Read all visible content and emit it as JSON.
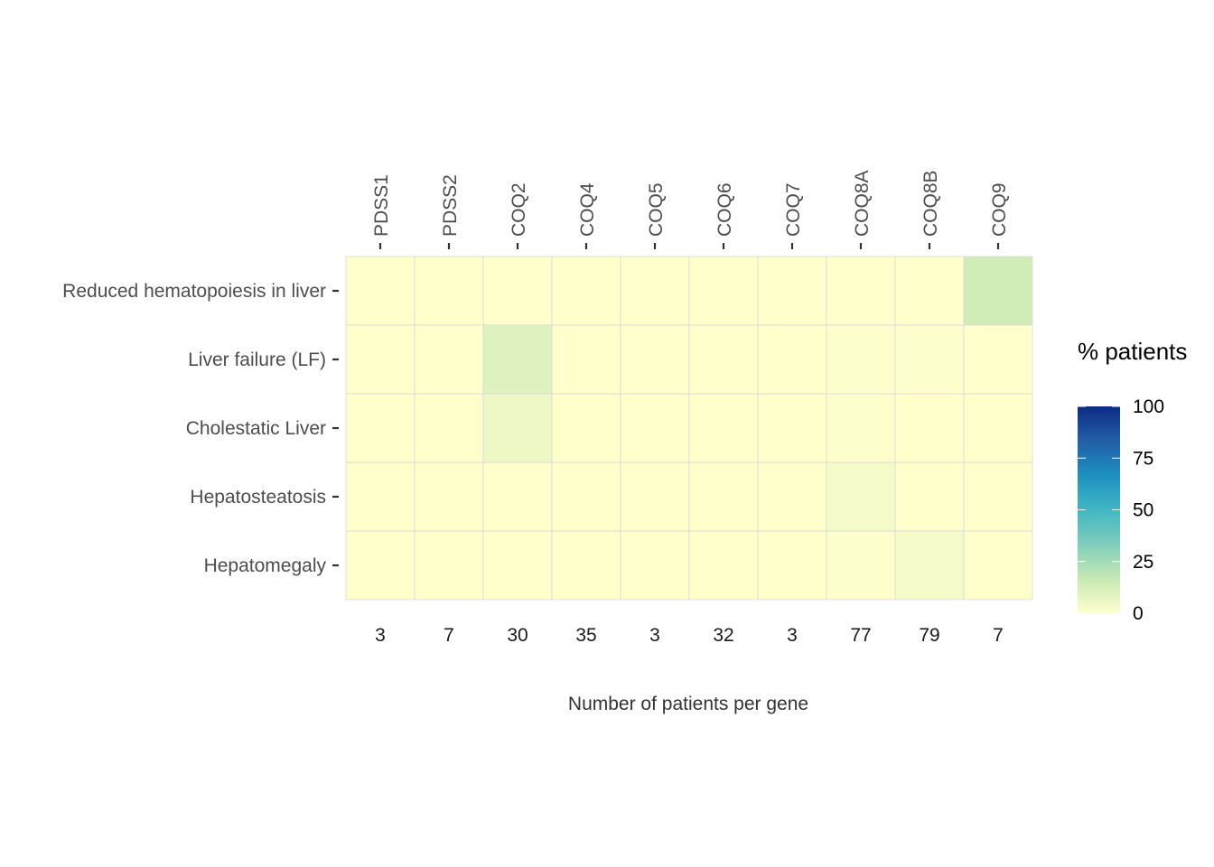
{
  "chart_data": {
    "type": "heatmap",
    "xlabel": "Number of patients per gene",
    "columns": [
      "PDSS1",
      "PDSS2",
      "COQ2",
      "COQ4",
      "COQ5",
      "COQ6",
      "COQ7",
      "COQ8A",
      "COQ8B",
      "COQ9"
    ],
    "patients_per_gene": [
      "3",
      "7",
      "30",
      "35",
      "3",
      "32",
      "3",
      "77",
      "79",
      "7"
    ],
    "rows": [
      "Reduced hematopoiesis in liver",
      "Liver failure (LF)",
      "Cholestatic Liver",
      "Hepatosteatosis",
      "Hepatomegaly"
    ],
    "values": [
      [
        0,
        0,
        0,
        0,
        0,
        0,
        0,
        0,
        0,
        14
      ],
      [
        0,
        0,
        10,
        0,
        0,
        0,
        0,
        1,
        1,
        0
      ],
      [
        0,
        0,
        5,
        0,
        0,
        0,
        0,
        1,
        0,
        0
      ],
      [
        0,
        0,
        0,
        0,
        0,
        0,
        0,
        3,
        0,
        0
      ],
      [
        0,
        0,
        0,
        0,
        0,
        0,
        0,
        1,
        3,
        0
      ]
    ],
    "legend": {
      "title": "% patients",
      "ticks": [
        "0",
        "25",
        "50",
        "75",
        "100"
      ],
      "range": [
        0,
        100
      ],
      "colors": [
        "#ffffcc",
        "#c7e9b4",
        "#7fcdbb",
        "#41b6c4",
        "#1d91c0",
        "#225ea8",
        "#0c2c84"
      ]
    },
    "grid": false,
    "legend_position": "right"
  }
}
